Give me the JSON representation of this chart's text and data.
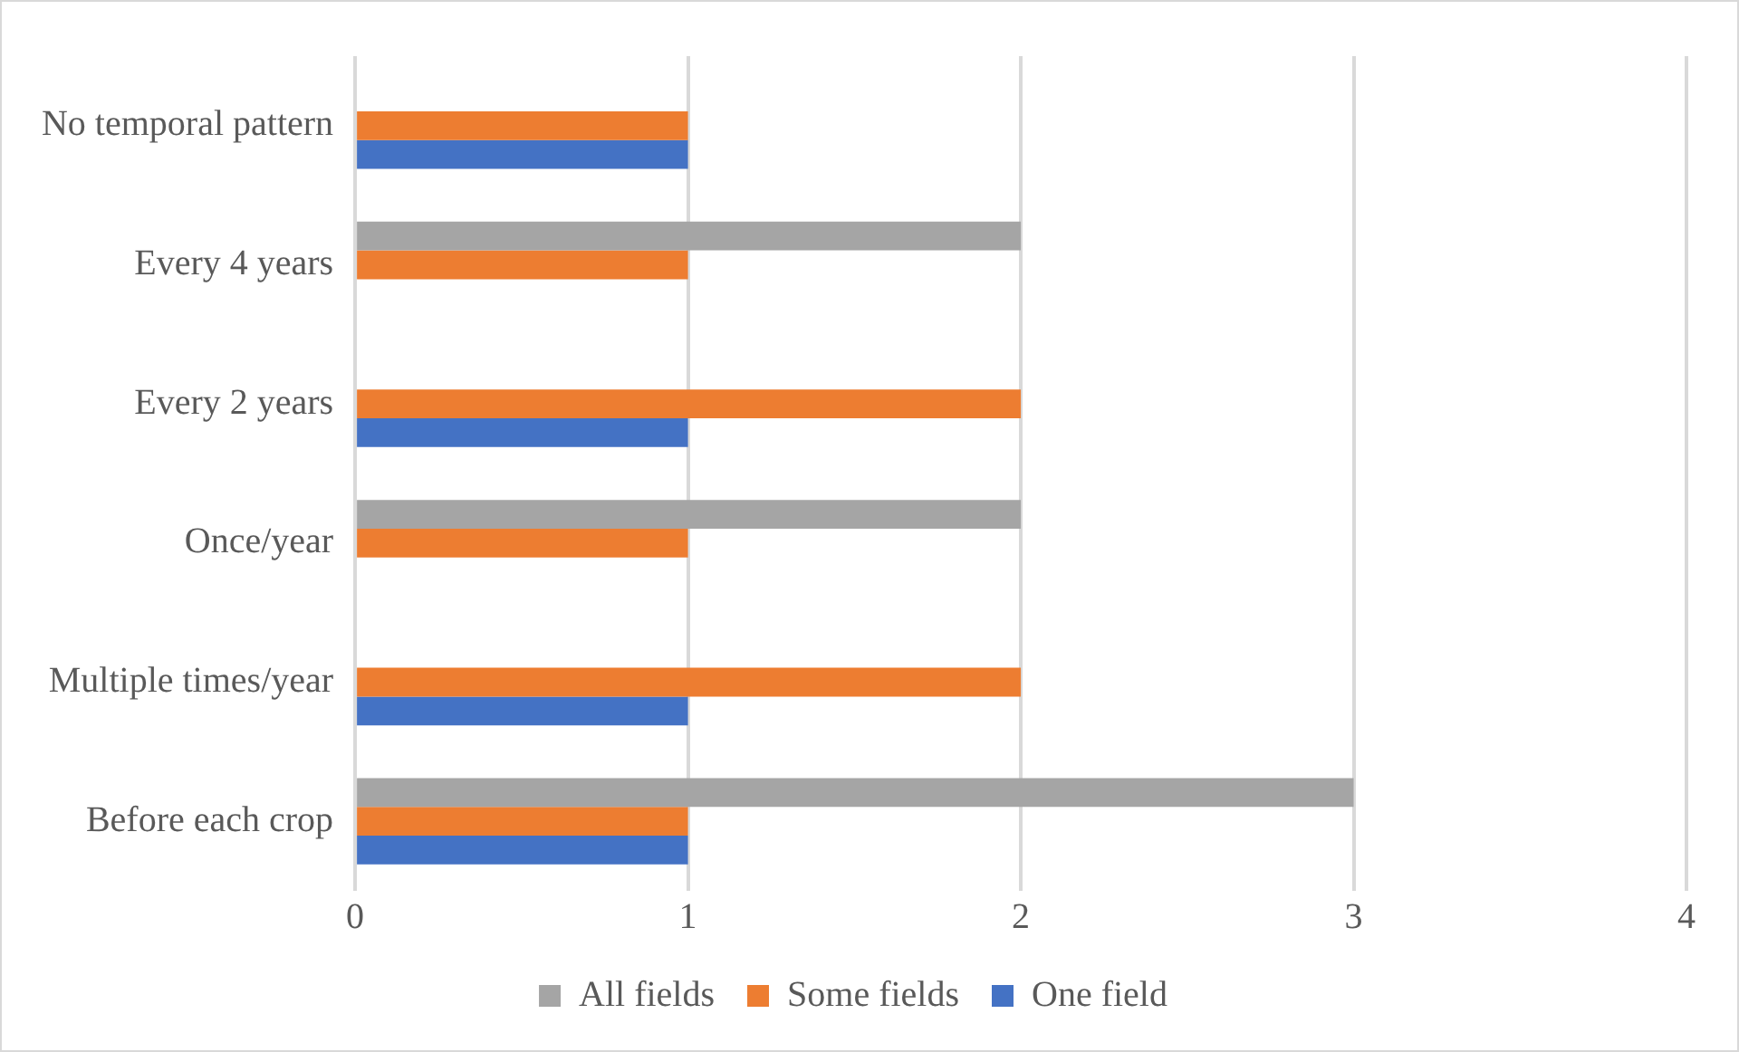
{
  "chart_data": {
    "type": "bar",
    "orientation": "horizontal",
    "categories": [
      "No temporal pattern",
      "Every 4 years",
      "Every 2 years",
      "Once/year",
      "Multiple times/year",
      "Before each crop"
    ],
    "series": [
      {
        "name": "All fields",
        "color": "#a5a5a5",
        "values": [
          0,
          2,
          0,
          2,
          0,
          3
        ]
      },
      {
        "name": "Some fields",
        "color": "#ed7d31",
        "values": [
          1,
          1,
          2,
          1,
          2,
          1
        ]
      },
      {
        "name": "One field",
        "color": "#4472c4",
        "values": [
          1,
          0,
          1,
          0,
          1,
          1
        ]
      }
    ],
    "xlim": [
      0,
      4
    ],
    "xticks": [
      0,
      1,
      2,
      3,
      4
    ],
    "grid": "x",
    "legend": "bottom"
  }
}
